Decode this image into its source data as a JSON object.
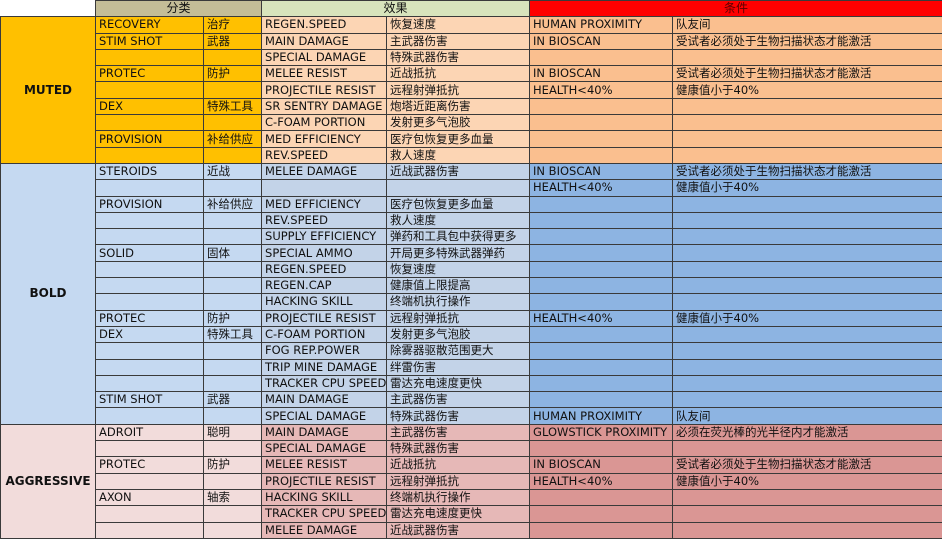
{
  "header": {
    "category": "分类",
    "effect": "效果",
    "condition": "条件"
  },
  "colors": {
    "header_category": "#C4BD97",
    "header_effect": "#D8E4BC",
    "header_condition": "#FF0000"
  },
  "groups": [
    {
      "label": "MUTED",
      "colors": {
        "category": "#FFC000",
        "effect": "#FCD5B4",
        "condition": "#FABF8F"
      },
      "rows": [
        [
          "RECOVERY",
          "治疗",
          "REGEN.SPEED",
          "恢复速度",
          "HUMAN PROXIMITY",
          "队友间"
        ],
        [
          "STIM SHOT",
          "武器",
          "MAIN DAMAGE",
          "主武器伤害",
          "IN BIOSCAN",
          "受试者必须处于生物扫描状态才能激活"
        ],
        [
          "",
          "",
          "SPECIAL DAMAGE",
          "特殊武器伤害",
          "",
          ""
        ],
        [
          "PROTEC",
          "防护",
          "MELEE RESIST",
          "近战抵抗",
          "IN BIOSCAN",
          "受试者必须处于生物扫描状态才能激活"
        ],
        [
          "",
          "",
          "PROJECTILE RESIST",
          "远程射弹抵抗",
          "HEALTH<40%",
          "健康值小于40%"
        ],
        [
          "DEX",
          "特殊工具",
          "SR SENTRY DAMAGE",
          "炮塔近距离伤害",
          "",
          ""
        ],
        [
          "",
          "",
          "C-FOAM PORTION",
          "发射更多气泡胶",
          "",
          ""
        ],
        [
          "PROVISION",
          "补给供应",
          "MED EFFICIENCY",
          "医疗包恢复更多血量",
          "",
          ""
        ],
        [
          "",
          "",
          "REV.SPEED",
          "救人速度",
          "",
          ""
        ]
      ]
    },
    {
      "label": "BOLD",
      "colors": {
        "category": "#C5D9F1",
        "effect": "#C3D3E8",
        "condition": "#8DB4E2"
      },
      "rows": [
        [
          "STEROIDS",
          "近战",
          "MELEE DAMAGE",
          "近战武器伤害",
          "IN BIOSCAN",
          "受试者必须处于生物扫描状态才能激活"
        ],
        [
          "",
          "",
          "",
          "",
          "HEALTH<40%",
          "健康值小于40%"
        ],
        [
          "PROVISION",
          "补给供应",
          "MED EFFICIENCY",
          "医疗包恢复更多血量",
          "",
          ""
        ],
        [
          "",
          "",
          "REV.SPEED",
          "救人速度",
          "",
          ""
        ],
        [
          "",
          "",
          "SUPPLY EFFICIENCY",
          "弹药和工具包中获得更多",
          "",
          ""
        ],
        [
          "SOLID",
          "固体",
          "SPECIAL AMMO",
          "开局更多特殊武器弹药",
          "",
          ""
        ],
        [
          "",
          "",
          "REGEN.SPEED",
          "恢复速度",
          "",
          ""
        ],
        [
          "",
          "",
          "REGEN.CAP",
          "健康值上限提高",
          "",
          ""
        ],
        [
          "",
          "",
          "HACKING SKILL",
          "终端机执行操作",
          "",
          ""
        ],
        [
          "PROTEC",
          "防护",
          "PROJECTILE RESIST",
          "远程射弹抵抗",
          "HEALTH<40%",
          "健康值小于40%"
        ],
        [
          "DEX",
          "特殊工具",
          "C-FOAM PORTION",
          "发射更多气泡胶",
          "",
          ""
        ],
        [
          "",
          "",
          "FOG REP.POWER",
          "除雾器驱散范围更大",
          "",
          ""
        ],
        [
          "",
          "",
          "TRIP MINE DAMAGE",
          "绊雷伤害",
          "",
          ""
        ],
        [
          "",
          "",
          "TRACKER CPU SPEED",
          "雷达充电速度更快",
          "",
          ""
        ],
        [
          "STIM SHOT",
          "武器",
          "MAIN DAMAGE",
          "主武器伤害",
          "",
          ""
        ],
        [
          "",
          "",
          "SPECIAL DAMAGE",
          "特殊武器伤害",
          "HUMAN PROXIMITY",
          "队友间"
        ]
      ]
    },
    {
      "label": "AGGRESSIVE",
      "colors": {
        "category": "#F2DCDB",
        "effect": "#E6B8B7",
        "condition": "#DA9694"
      },
      "rows": [
        [
          "ADROIT",
          "聪明",
          "MAIN DAMAGE",
          "主武器伤害",
          "GLOWSTICK PROXIMITY",
          "必须在荧光棒的光半径内才能激活"
        ],
        [
          "",
          "",
          "SPECIAL DAMAGE",
          "特殊武器伤害",
          "",
          ""
        ],
        [
          "PROTEC",
          "防护",
          "MELEE RESIST",
          "近战抵抗",
          "IN BIOSCAN",
          "受试者必须处于生物扫描状态才能激活"
        ],
        [
          "",
          "",
          "PROJECTILE RESIST",
          "远程射弹抵抗",
          "HEALTH<40%",
          "健康值小于40%"
        ],
        [
          "AXON",
          "轴索",
          "HACKING SKILL",
          "终端机执行操作",
          "",
          ""
        ],
        [
          "",
          "",
          "TRACKER CPU SPEED",
          "雷达充电速度更快",
          "",
          ""
        ],
        [
          "",
          "",
          "MELEE DAMAGE",
          "近战武器伤害",
          "",
          ""
        ]
      ]
    }
  ]
}
